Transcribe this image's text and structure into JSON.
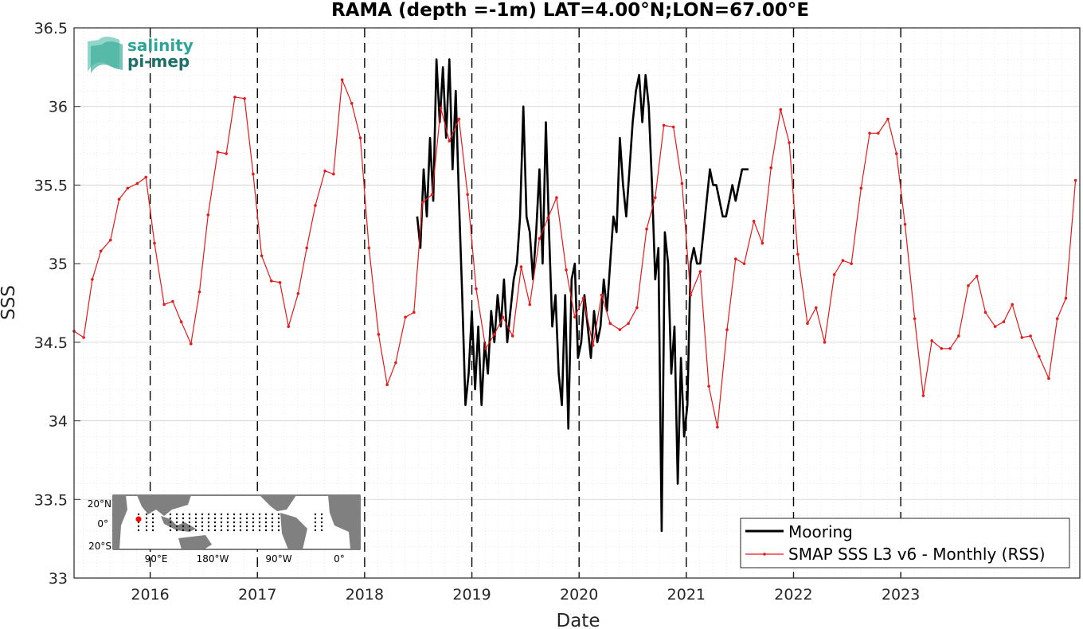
{
  "chart_data": {
    "type": "line",
    "title": "RAMA (depth =-1m) LAT=4.00°N;LON=67.00°E",
    "xlabel": "Date",
    "ylabel": "SSS",
    "xlim": [
      2015.29,
      2024.67
    ],
    "ylim": [
      33,
      36.5
    ],
    "yticks": [
      "33",
      "33.5",
      "34",
      "34.5",
      "35",
      "35.5",
      "36",
      "36.5"
    ],
    "xticks": [
      {
        "label": "2016",
        "x": 2016
      },
      {
        "label": "2017",
        "x": 2017
      },
      {
        "label": "2018",
        "x": 2018
      },
      {
        "label": "2019",
        "x": 2019
      },
      {
        "label": "2020",
        "x": 2020
      },
      {
        "label": "2021",
        "x": 2021
      },
      {
        "label": "2022",
        "x": 2022
      },
      {
        "label": "2023",
        "x": 2023
      }
    ],
    "grid": "on",
    "legend_position": "bottom-right",
    "year_lines": [
      2016,
      2017,
      2018,
      2019,
      2020,
      2021,
      2022,
      2023
    ],
    "series": [
      {
        "name": "Mooring",
        "color": "#000000",
        "x": [
          2018.49,
          2018.52,
          2018.55,
          2018.58,
          2018.61,
          2018.64,
          2018.67,
          2018.7,
          2018.73,
          2018.76,
          2018.79,
          2018.82,
          2018.85,
          2018.88,
          2018.91,
          2018.94,
          2018.97,
          2019.0,
          2019.03,
          2019.06,
          2019.09,
          2019.12,
          2019.15,
          2019.18,
          2019.21,
          2019.24,
          2019.27,
          2019.3,
          2019.33,
          2019.36,
          2019.39,
          2019.42,
          2019.45,
          2019.48,
          2019.51,
          2019.54,
          2019.57,
          2019.6,
          2019.63,
          2019.66,
          2019.69,
          2019.72,
          2019.75,
          2019.78,
          2019.81,
          2019.84,
          2019.87,
          2019.9,
          2019.93,
          2019.96,
          2019.99,
          2020.02,
          2020.05,
          2020.08,
          2020.11,
          2020.14,
          2020.17,
          2020.2,
          2020.23,
          2020.26,
          2020.29,
          2020.32,
          2020.35,
          2020.38,
          2020.41,
          2020.44,
          2020.47,
          2020.5,
          2020.53,
          2020.56,
          2020.59,
          2020.62,
          2020.65,
          2020.68,
          2020.71,
          2020.74,
          2020.77,
          2020.8,
          2020.83,
          2020.86,
          2020.89,
          2020.92,
          2020.95,
          2020.98,
          2021.01,
          2021.04,
          2021.07,
          2021.1,
          2021.13,
          2021.16,
          2021.19,
          2021.22,
          2021.25,
          2021.28,
          2021.31,
          2021.34,
          2021.37,
          2021.4,
          2021.43,
          2021.46,
          2021.49,
          2021.52,
          2021.55,
          2021.58
        ],
        "y": [
          35.3,
          35.1,
          35.6,
          35.3,
          35.8,
          35.4,
          36.3,
          35.9,
          36.25,
          35.8,
          36.3,
          35.6,
          36.1,
          35.4,
          34.8,
          34.1,
          34.3,
          34.7,
          34.2,
          34.6,
          34.1,
          34.5,
          34.3,
          34.7,
          34.5,
          34.8,
          34.6,
          34.9,
          34.5,
          34.7,
          34.9,
          35.0,
          35.3,
          36.0,
          35.3,
          35.2,
          34.9,
          35.2,
          35.6,
          35.0,
          35.9,
          35.2,
          34.6,
          34.8,
          34.3,
          34.1,
          34.8,
          33.95,
          34.9,
          35.0,
          34.4,
          34.5,
          34.8,
          34.6,
          34.4,
          34.7,
          34.5,
          34.6,
          34.9,
          34.7,
          35.0,
          35.3,
          35.2,
          35.8,
          35.5,
          35.3,
          35.6,
          35.9,
          36.1,
          36.2,
          35.9,
          36.2,
          36.0,
          35.5,
          34.9,
          35.1,
          33.3,
          35.2,
          35.0,
          34.3,
          34.6,
          33.6,
          34.4,
          33.9,
          34.1,
          35.0,
          35.1,
          35.0,
          35.0,
          35.2,
          35.4,
          35.6,
          35.5,
          35.5,
          35.4,
          35.3,
          35.3,
          35.4,
          35.5,
          35.4,
          35.5,
          35.6,
          35.6,
          35.6
        ]
      },
      {
        "name": "SMAP SSS L3 v6 - Monthly (RSS)",
        "color": "#e41a1c",
        "x": [
          2015.29,
          2015.38,
          2015.46,
          2015.54,
          2015.63,
          2015.71,
          2015.79,
          2015.88,
          2015.96,
          2016.04,
          2016.13,
          2016.21,
          2016.29,
          2016.38,
          2016.46,
          2016.54,
          2016.63,
          2016.71,
          2016.79,
          2016.88,
          2016.96,
          2017.04,
          2017.13,
          2017.21,
          2017.29,
          2017.38,
          2017.46,
          2017.54,
          2017.63,
          2017.71,
          2017.79,
          2017.88,
          2017.96,
          2018.04,
          2018.13,
          2018.21,
          2018.29,
          2018.38,
          2018.46,
          2018.54,
          2018.63,
          2018.71,
          2018.79,
          2018.88,
          2018.96,
          2019.04,
          2019.13,
          2019.21,
          2019.29,
          2019.38,
          2019.46,
          2019.54,
          2019.63,
          2019.71,
          2019.79,
          2019.88,
          2019.96,
          2020.04,
          2020.13,
          2020.21,
          2020.29,
          2020.38,
          2020.46,
          2020.54,
          2020.63,
          2020.71,
          2020.79,
          2020.88,
          2020.96,
          2021.04,
          2021.13,
          2021.21,
          2021.29,
          2021.38,
          2021.46,
          2021.54,
          2021.63,
          2021.71,
          2021.79,
          2021.88,
          2021.96,
          2022.04,
          2022.13,
          2022.21,
          2022.29,
          2022.38,
          2022.46,
          2022.54,
          2022.63,
          2022.71,
          2022.79,
          2022.88,
          2022.96,
          2023.04,
          2023.13,
          2023.21,
          2023.29,
          2023.38,
          2023.46,
          2023.54,
          2023.63,
          2023.71,
          2023.79,
          2023.88,
          2023.96,
          2024.04,
          2024.13,
          2024.21,
          2024.29,
          2024.38,
          2024.46,
          2024.54,
          2024.63
        ],
        "y": [
          34.57,
          34.53,
          34.9,
          35.08,
          35.15,
          35.41,
          35.48,
          35.51,
          35.55,
          35.13,
          34.74,
          34.76,
          34.63,
          34.49,
          34.82,
          35.31,
          35.71,
          35.7,
          36.06,
          36.05,
          35.57,
          35.05,
          34.89,
          34.88,
          34.6,
          34.81,
          35.1,
          35.37,
          35.59,
          35.57,
          36.17,
          36.02,
          35.8,
          35.1,
          34.55,
          34.23,
          34.37,
          34.66,
          34.69,
          35.39,
          35.44,
          35.99,
          35.78,
          35.92,
          35.44,
          34.84,
          34.46,
          34.55,
          34.66,
          34.54,
          34.98,
          34.74,
          35.16,
          35.29,
          35.42,
          34.96,
          34.66,
          34.78,
          34.48,
          34.8,
          34.62,
          34.58,
          34.62,
          34.72,
          35.22,
          35.42,
          35.88,
          35.87,
          35.51,
          34.8,
          34.95,
          34.22,
          33.96,
          34.58,
          35.03,
          35.0,
          35.27,
          35.13,
          35.61,
          35.98,
          35.77,
          35.06,
          34.62,
          34.72,
          34.5,
          34.93,
          35.02,
          35.0,
          35.48,
          35.83,
          35.83,
          35.92,
          35.7,
          35.25,
          34.65,
          34.16,
          34.51,
          34.46,
          34.46,
          34.54,
          34.86,
          34.92,
          34.69,
          34.6,
          34.63,
          34.74,
          34.53,
          34.54,
          34.41,
          34.27,
          34.65,
          34.78,
          35.53
        ]
      }
    ]
  },
  "legend": {
    "mooring": "Mooring",
    "smap": "SMAP SSS L3 v6 - Monthly (RSS)"
  },
  "logo": {
    "line1": "salinity",
    "line2": "pi-mep"
  },
  "inset_map": {
    "lat_labels": [
      "20°N",
      "0°",
      "20°S"
    ],
    "lon_labels": [
      "90°E",
      "180°W",
      "90°W",
      "0°"
    ],
    "colors": {
      "land": "#808080",
      "ocean": "#ffffff",
      "mooring": "#000000",
      "highlight": "#ff0000"
    }
  }
}
